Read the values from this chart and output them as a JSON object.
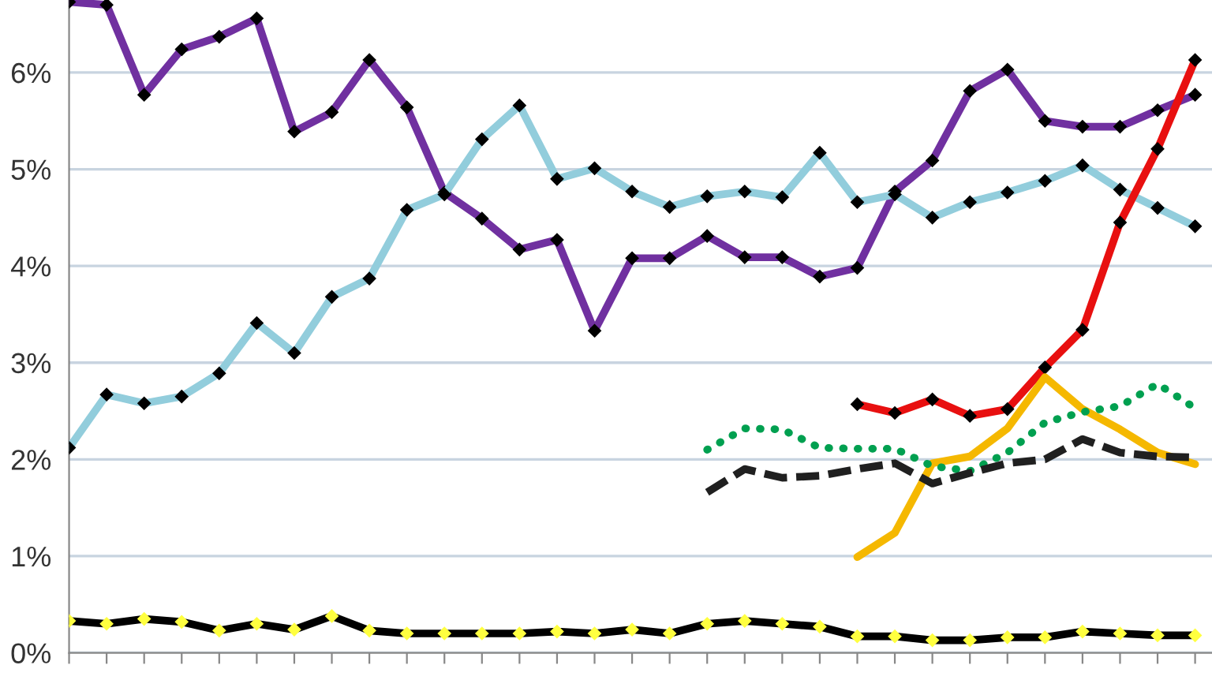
{
  "chart_data": {
    "type": "line",
    "categories": [
      null,
      null,
      null,
      null,
      null,
      null,
      null,
      null,
      null,
      null,
      null,
      null,
      null,
      null,
      null,
      null,
      null,
      null,
      null,
      null,
      null,
      null,
      null,
      null,
      null,
      null,
      null,
      null,
      null,
      null,
      null
    ],
    "series": [
      {
        "color": "#7030a0",
        "marker": "diamond",
        "line_style": "solid",
        "values": [
          6.73,
          6.7,
          5.77,
          6.24,
          6.37,
          6.56,
          5.39,
          5.59,
          6.13,
          5.64,
          4.76,
          4.49,
          4.17,
          4.27,
          3.33,
          4.08,
          4.08,
          4.31,
          4.09,
          4.09,
          3.89,
          3.98,
          4.77,
          5.09,
          5.81,
          6.03,
          5.5,
          5.44,
          5.44,
          5.61,
          5.77
        ]
      },
      {
        "color": "#92cddc",
        "marker": "diamond",
        "line_style": "solid",
        "values": [
          2.12,
          2.67,
          2.58,
          2.65,
          2.89,
          3.41,
          3.1,
          3.68,
          3.87,
          4.58,
          4.74,
          5.31,
          5.66,
          4.9,
          5.01,
          4.77,
          4.61,
          4.72,
          4.77,
          4.71,
          5.17,
          4.66,
          4.74,
          4.5,
          4.66,
          4.76,
          4.88,
          5.04,
          4.79,
          4.6,
          4.41
        ]
      },
      {
        "color": "#000000",
        "marker": "diamond",
        "line_style": "solid",
        "values": [
          0.33,
          0.3,
          0.35,
          0.32,
          0.23,
          0.3,
          0.24,
          0.38,
          0.23,
          0.2,
          0.2,
          0.2,
          0.2,
          0.22,
          0.2,
          0.24,
          0.2,
          0.3,
          0.33,
          0.3,
          0.27,
          0.17,
          0.17,
          0.13,
          0.13,
          0.16,
          0.16,
          0.22,
          0.2,
          0.18,
          0.18
        ]
      },
      {
        "color": "#e81010",
        "marker": "diamond",
        "line_style": "solid",
        "values": [
          null,
          null,
          null,
          null,
          null,
          null,
          null,
          null,
          null,
          null,
          null,
          null,
          null,
          null,
          null,
          null,
          null,
          null,
          null,
          null,
          null,
          2.57,
          2.48,
          2.62,
          2.45,
          2.52,
          2.95,
          3.34,
          4.45,
          5.21,
          6.13
        ]
      },
      {
        "color": "#f5b800",
        "marker": "none",
        "line_style": "solid",
        "values": [
          null,
          null,
          null,
          null,
          null,
          null,
          null,
          null,
          null,
          null,
          null,
          null,
          null,
          null,
          null,
          null,
          null,
          null,
          null,
          null,
          null,
          0.99,
          1.24,
          1.96,
          2.03,
          2.32,
          2.85,
          2.52,
          2.31,
          2.07,
          1.95
        ]
      },
      {
        "color": "#00a050",
        "marker": "none",
        "line_style": "dotted",
        "values": [
          null,
          null,
          null,
          null,
          null,
          null,
          null,
          null,
          null,
          null,
          null,
          null,
          null,
          null,
          null,
          null,
          null,
          2.1,
          2.32,
          2.31,
          2.12,
          2.11,
          2.11,
          1.93,
          1.88,
          2.07,
          2.38,
          2.49,
          2.55,
          2.78,
          2.53
        ]
      },
      {
        "color": "#202020",
        "marker": "none",
        "line_style": "dashed",
        "values": [
          null,
          null,
          null,
          null,
          null,
          null,
          null,
          null,
          null,
          null,
          null,
          null,
          null,
          null,
          null,
          null,
          null,
          1.66,
          1.9,
          1.81,
          1.83,
          1.9,
          1.96,
          1.75,
          1.86,
          1.96,
          2.0,
          2.21,
          2.07,
          2.03,
          2.02
        ]
      }
    ],
    "ylim": [
      0,
      6.75
    ],
    "yticks": [
      {
        "value": 0,
        "label": "0%"
      },
      {
        "value": 1,
        "label": "1%"
      },
      {
        "value": 2,
        "label": "2%"
      },
      {
        "value": 3,
        "label": "3%"
      },
      {
        "value": 4,
        "label": "4%"
      },
      {
        "value": 5,
        "label": "5%"
      },
      {
        "value": 6,
        "label": "6%"
      }
    ],
    "grid": "y",
    "legend": false
  }
}
